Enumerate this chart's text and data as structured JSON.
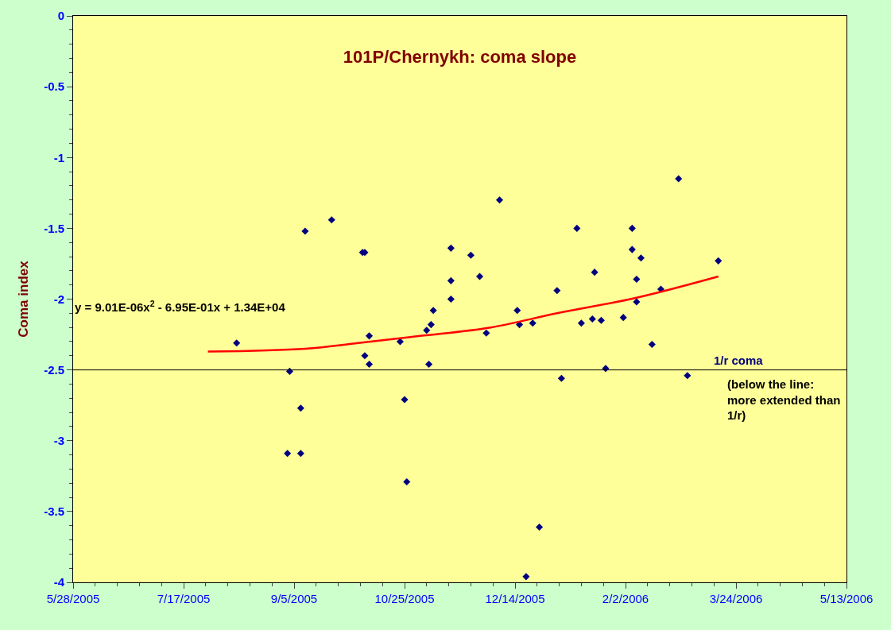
{
  "chart_data": {
    "type": "scatter",
    "title": "101P/Chernykh: coma slope",
    "ylabel": "Coma index",
    "xlim": [
      "2005-05-28",
      "2006-05-13"
    ],
    "xticks": [
      {
        "value": "2005-05-28",
        "label": "5/28/2005"
      },
      {
        "value": "2005-07-17",
        "label": "7/17/2005"
      },
      {
        "value": "2005-09-05",
        "label": "9/5/2005"
      },
      {
        "value": "2005-10-25",
        "label": "10/25/2005"
      },
      {
        "value": "2005-12-14",
        "label": "12/14/2005"
      },
      {
        "value": "2006-02-02",
        "label": "2/2/2006"
      },
      {
        "value": "2006-03-24",
        "label": "3/24/2006"
      },
      {
        "value": "2006-05-13",
        "label": "5/13/2006"
      }
    ],
    "ylim": [
      -4,
      0
    ],
    "yticks": [
      -4,
      -3.5,
      -3,
      -2.5,
      -2,
      -1.5,
      -1,
      -0.5,
      0
    ],
    "grid": false,
    "series": [
      {
        "marker": "diamond",
        "color": "#000080",
        "x": [
          "2005-08-10",
          "2005-09-02",
          "2005-09-03",
          "2005-09-08",
          "2005-09-08",
          "2005-09-10",
          "2005-09-22",
          "2005-10-06",
          "2005-10-07",
          "2005-10-07",
          "2005-10-09",
          "2005-10-09",
          "2005-10-23",
          "2005-10-25",
          "2005-10-26",
          "2005-11-04",
          "2005-11-06",
          "2005-11-07",
          "2005-11-05",
          "2005-11-15",
          "2005-11-15",
          "2005-11-15",
          "2005-11-24",
          "2005-11-28",
          "2005-12-01",
          "2005-12-07",
          "2005-12-15",
          "2005-12-16",
          "2005-12-19",
          "2005-12-22",
          "2005-12-25",
          "2006-01-02",
          "2006-01-04",
          "2006-01-11",
          "2006-01-13",
          "2006-01-18",
          "2006-01-19",
          "2006-01-22",
          "2006-01-24",
          "2006-02-01",
          "2006-02-05",
          "2006-02-05",
          "2006-02-07",
          "2006-02-07",
          "2006-02-09",
          "2006-02-14",
          "2006-02-18",
          "2006-02-26",
          "2006-03-02",
          "2006-03-16"
        ],
        "values": [
          -2.31,
          -3.09,
          -2.51,
          -3.09,
          -2.77,
          -1.52,
          -1.44,
          -1.67,
          -1.67,
          -2.4,
          -2.26,
          -2.46,
          -2.3,
          -2.71,
          -3.29,
          -2.22,
          -2.18,
          -2.08,
          -2.46,
          -1.64,
          -1.87,
          -2.0,
          -1.69,
          -1.84,
          -2.24,
          -1.3,
          -2.08,
          -2.18,
          -3.96,
          -2.17,
          -3.61,
          -1.94,
          -2.56,
          -1.5,
          -2.17,
          -2.14,
          -1.81,
          -2.15,
          -2.49,
          -2.13,
          -1.5,
          -1.65,
          -2.02,
          -1.86,
          -1.71,
          -2.32,
          -1.93,
          -1.15,
          -2.54,
          -1.73
        ]
      },
      {
        "type": "line",
        "marker": "none",
        "color": "#ff0000",
        "x": [
          "2005-07-28",
          "2005-09-10",
          "2005-10-04",
          "2005-11-01",
          "2005-12-03",
          "2006-01-02",
          "2006-02-07",
          "2006-03-16"
        ],
        "values": [
          -2.37,
          -2.35,
          -2.31,
          -2.26,
          -2.2,
          -2.1,
          -1.99,
          -1.84
        ]
      }
    ],
    "ref_lines": [
      {
        "axis": "y",
        "value": -2.5,
        "label": "1/r coma",
        "color": "#000000"
      }
    ],
    "annotations": [
      "y = 9.01E-06x$^{2}$ - 6.95E-01x + 1.34E+04",
      "(below the line: more extended than 1/r)"
    ]
  }
}
